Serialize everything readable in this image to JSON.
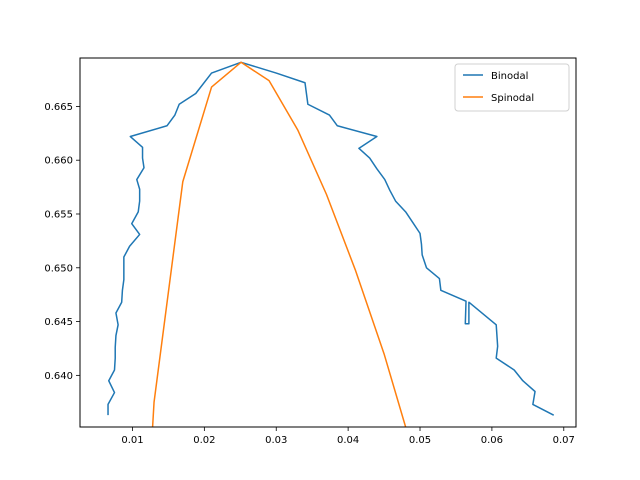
{
  "chart_data": {
    "type": "line",
    "title": "",
    "xlabel": "",
    "ylabel": "",
    "xlim": [
      0.0027,
      0.0717
    ],
    "ylim": [
      0.6352,
      0.6695
    ],
    "xticks": [
      0.01,
      0.02,
      0.03,
      0.04,
      0.05,
      0.06,
      0.07
    ],
    "xtick_labels": [
      "0.01",
      "0.02",
      "0.03",
      "0.04",
      "0.05",
      "0.06",
      "0.07"
    ],
    "yticks": [
      0.64,
      0.645,
      0.65,
      0.655,
      0.66,
      0.665
    ],
    "ytick_labels": [
      "0.640",
      "0.645",
      "0.650",
      "0.655",
      "0.660",
      "0.665"
    ],
    "grid": false,
    "legend_position": "top-right",
    "series": [
      {
        "name": "Binodal",
        "color": "#1f77b4",
        "points": [
          [
            0.0066,
            0.6363
          ],
          [
            0.0066,
            0.6373
          ],
          [
            0.0075,
            0.6384
          ],
          [
            0.0067,
            0.6395
          ],
          [
            0.0075,
            0.6405
          ],
          [
            0.0076,
            0.6416
          ],
          [
            0.0076,
            0.6426
          ],
          [
            0.0077,
            0.6437
          ],
          [
            0.008,
            0.6447
          ],
          [
            0.0077,
            0.6458
          ],
          [
            0.0085,
            0.6468
          ],
          [
            0.0086,
            0.6479
          ],
          [
            0.0088,
            0.6489
          ],
          [
            0.0088,
            0.65
          ],
          [
            0.0088,
            0.651
          ],
          [
            0.0096,
            0.652
          ],
          [
            0.011,
            0.6531
          ],
          [
            0.0099,
            0.6541
          ],
          [
            0.0108,
            0.6552
          ],
          [
            0.011,
            0.6562
          ],
          [
            0.011,
            0.6573
          ],
          [
            0.0106,
            0.6582
          ],
          [
            0.0116,
            0.6593
          ],
          [
            0.0114,
            0.6602
          ],
          [
            0.0114,
            0.6612
          ],
          [
            0.0097,
            0.6622
          ],
          [
            0.0148,
            0.6632
          ],
          [
            0.0159,
            0.6642
          ],
          [
            0.0165,
            0.6652
          ],
          [
            0.0188,
            0.6662
          ],
          [
            0.021,
            0.6681
          ],
          [
            0.0251,
            0.6691
          ],
          [
            0.03,
            0.6681
          ],
          [
            0.034,
            0.6672
          ],
          [
            0.0344,
            0.6652
          ],
          [
            0.0374,
            0.6642
          ],
          [
            0.0385,
            0.6632
          ],
          [
            0.044,
            0.6622
          ],
          [
            0.0415,
            0.6611
          ],
          [
            0.043,
            0.6602
          ],
          [
            0.044,
            0.6592
          ],
          [
            0.0451,
            0.6582
          ],
          [
            0.0458,
            0.6572
          ],
          [
            0.0466,
            0.6562
          ],
          [
            0.048,
            0.6552
          ],
          [
            0.049,
            0.6542
          ],
          [
            0.05,
            0.6532
          ],
          [
            0.0502,
            0.6522
          ],
          [
            0.0503,
            0.6512
          ],
          [
            0.0509,
            0.65
          ],
          [
            0.0527,
            0.649
          ],
          [
            0.0529,
            0.6479
          ],
          [
            0.0564,
            0.6469
          ],
          [
            0.0563,
            0.6448
          ],
          [
            0.0564,
            0.6448
          ],
          [
            0.0566,
            0.6448
          ],
          [
            0.0568,
            0.6448
          ],
          [
            0.0568,
            0.6468
          ],
          [
            0.0606,
            0.6447
          ],
          [
            0.0608,
            0.6427
          ],
          [
            0.0606,
            0.6416
          ],
          [
            0.0631,
            0.6405
          ],
          [
            0.0643,
            0.6395
          ],
          [
            0.066,
            0.6385
          ],
          [
            0.0657,
            0.6373
          ],
          [
            0.0686,
            0.6363
          ]
        ]
      },
      {
        "name": "Spinodal",
        "color": "#ff7f0e",
        "points": [
          [
            0.0128,
            0.6352
          ],
          [
            0.013,
            0.6375
          ],
          [
            0.017,
            0.658
          ],
          [
            0.021,
            0.6668
          ],
          [
            0.0251,
            0.6691
          ],
          [
            0.029,
            0.6674
          ],
          [
            0.033,
            0.6628
          ],
          [
            0.037,
            0.6568
          ],
          [
            0.041,
            0.6498
          ],
          [
            0.045,
            0.642
          ],
          [
            0.048,
            0.6352
          ]
        ]
      }
    ]
  }
}
